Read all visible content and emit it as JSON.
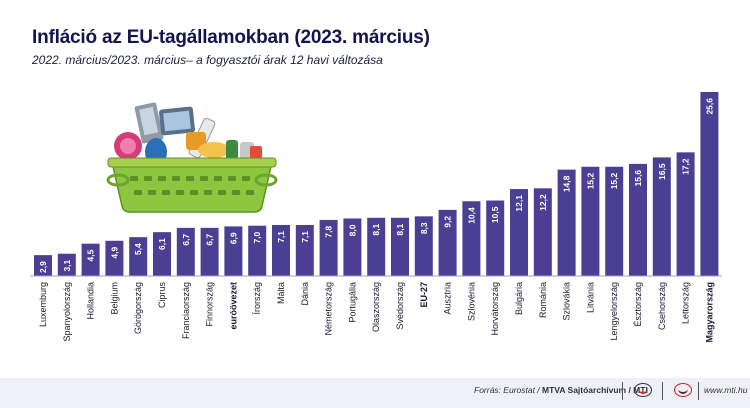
{
  "title": "Infláció az EU-tagállamokban (2023. március)",
  "subtitle": "2022. március/2023. március– a fogyasztói árak 12 havi változása",
  "footer": {
    "source_prefix": "Forrás: Eurostat / ",
    "source_org": "MTVA Sajtóarchívum / MTI",
    "website": "www.mti.hu"
  },
  "colors": {
    "bar": "#4a3f92",
    "baseline": "#9aa0c8",
    "title": "#14144d"
  },
  "icons": [
    "shopping-basket-illustration",
    "mtva-logo-icon",
    "mti-logo-icon"
  ],
  "chart_data": {
    "type": "bar",
    "categories": [
      "Luxemburg",
      "Spanyolország",
      "Hollandia",
      "Belgium",
      "Görögország",
      "Ciprus",
      "Franciaország",
      "Finnország",
      "euróövezet",
      "Írország",
      "Málta",
      "Dánia",
      "Németország",
      "Portugália",
      "Olaszország",
      "Svédország",
      "EU-27",
      "Ausztria",
      "Szlovénia",
      "Horvátország",
      "Bulgária",
      "Románia",
      "Szlovákia",
      "Litvánia",
      "Lengyelország",
      "Észtország",
      "Csehország",
      "Lettország",
      "Magyarország"
    ],
    "values": [
      2.9,
      3.1,
      4.5,
      4.9,
      5.4,
      6.1,
      6.7,
      6.7,
      6.9,
      7.0,
      7.1,
      7.1,
      7.8,
      8.0,
      8.1,
      8.1,
      8.3,
      9.2,
      10.4,
      10.5,
      12.1,
      12.2,
      14.8,
      15.2,
      15.2,
      15.6,
      16.5,
      17.2,
      25.6
    ],
    "value_labels": [
      "2,9",
      "3,1",
      "4,5",
      "4,9",
      "5,4",
      "6,1",
      "6,7",
      "6,7",
      "6,9",
      "7,0",
      "7,1",
      "7,1",
      "7,8",
      "8,0",
      "8,1",
      "8,1",
      "8,3",
      "9,2",
      "10,4",
      "10,5",
      "12,1",
      "12,2",
      "14,8",
      "15,2",
      "15,2",
      "15,6",
      "16,5",
      "17,2",
      "25,6"
    ],
    "highlighted": [
      "euróövezet",
      "EU-27",
      "Magyarország"
    ],
    "ylim": [
      0,
      25.6
    ],
    "grid": false,
    "legend": "none"
  }
}
